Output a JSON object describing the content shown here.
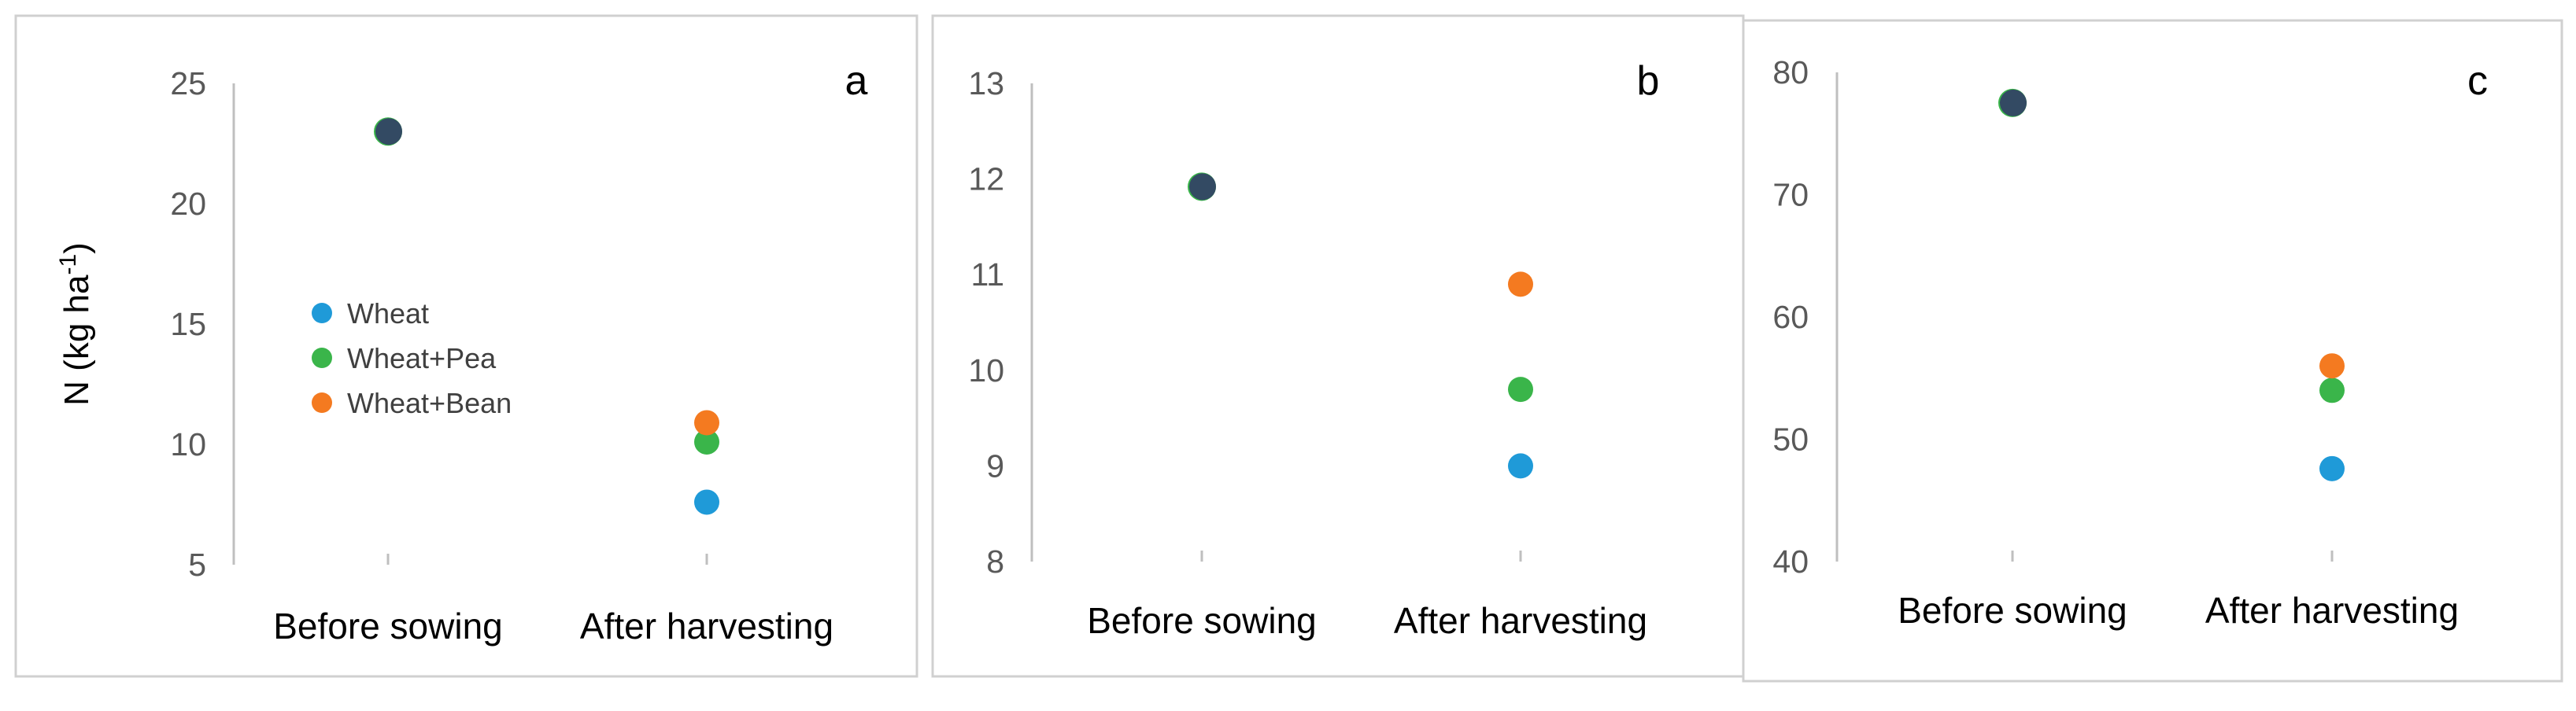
{
  "chart_data": [
    {
      "type": "scatter",
      "panel_label": "a",
      "ylabel": "N (kg ha",
      "ylabel_sup": "-1",
      "ylabel_close": ")",
      "categories": [
        "Before sowing",
        "After harvesting"
      ],
      "ylim": [
        5,
        25
      ],
      "yticks": [
        "5",
        "10",
        "15",
        "20",
        "25"
      ],
      "ytick_values": [
        5,
        10,
        15,
        20,
        25
      ],
      "before_sowing_value": 23.0,
      "series": [
        {
          "name": "Wheat",
          "color": "#1f9ad8",
          "values": [
            23.0,
            7.6
          ]
        },
        {
          "name": "Wheat+Pea",
          "color": "#3ab54a",
          "values": [
            23.0,
            10.1
          ]
        },
        {
          "name": "Wheat+Bean",
          "color": "#f47a20",
          "values": [
            23.0,
            10.9
          ]
        }
      ],
      "legend": "left-middle",
      "grid": false
    },
    {
      "type": "scatter",
      "panel_label": "b",
      "categories": [
        "Before sowing",
        "After harvesting"
      ],
      "ylim": [
        8,
        13
      ],
      "yticks": [
        "8",
        "9",
        "10",
        "11",
        "12",
        "13"
      ],
      "ytick_values": [
        8,
        9,
        10,
        11,
        12,
        13
      ],
      "before_sowing_value": 11.92,
      "series": [
        {
          "name": "Wheat",
          "color": "#1f9ad8",
          "values": [
            11.92,
            9.0
          ]
        },
        {
          "name": "Wheat+Pea",
          "color": "#3ab54a",
          "values": [
            11.92,
            9.8
          ]
        },
        {
          "name": "Wheat+Bean",
          "color": "#f47a20",
          "values": [
            11.92,
            10.9
          ]
        }
      ],
      "grid": false
    },
    {
      "type": "scatter",
      "panel_label": "c",
      "categories": [
        "Before sowing",
        "After harvesting"
      ],
      "ylim": [
        40,
        80
      ],
      "yticks": [
        "40",
        "50",
        "60",
        "70",
        "80"
      ],
      "ytick_values": [
        40,
        50,
        60,
        70,
        80
      ],
      "before_sowing_value": 77.5,
      "series": [
        {
          "name": "Wheat",
          "color": "#1f9ad8",
          "values": [
            77.5,
            47.6
          ]
        },
        {
          "name": "Wheat+Pea",
          "color": "#3ab54a",
          "values": [
            77.5,
            54.0
          ]
        },
        {
          "name": "Wheat+Bean",
          "color": "#f47a20",
          "values": [
            77.5,
            56.0
          ]
        }
      ],
      "grid": false
    }
  ],
  "colors": {
    "before_sowing_marker": "#334a63",
    "axis": "#bfbfbf",
    "panel_border": "#d0d0d0"
  }
}
